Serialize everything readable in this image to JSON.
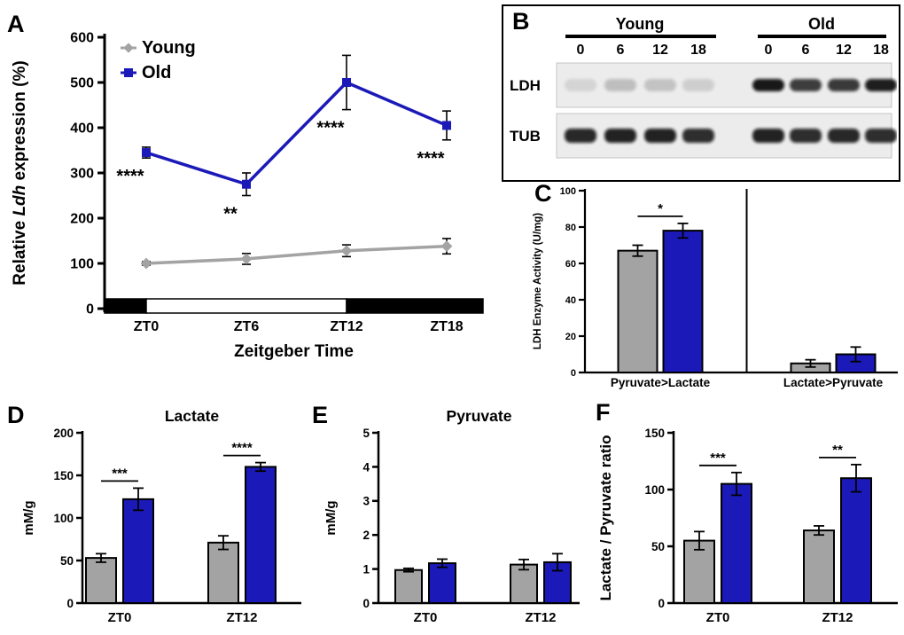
{
  "colors": {
    "young": "#a3a3a3",
    "old": "#1b1ab8",
    "axis": "#000000",
    "blot_background": "#ececec"
  },
  "panel_labels": {
    "A": "A",
    "B": "B",
    "C": "C",
    "D": "D",
    "E": "E",
    "F": "F"
  },
  "chart_data": [
    {
      "panel": "A",
      "type": "line",
      "xlabel": "Zeitgeber Time",
      "ylabel": "Relative Ldh expression (%)",
      "ylabel_italic_word": "Ldh",
      "categories": [
        "ZT0",
        "ZT6",
        "ZT12",
        "ZT18"
      ],
      "ylim": [
        0,
        600
      ],
      "yticks": [
        0,
        100,
        200,
        300,
        400,
        500,
        600
      ],
      "legend": [
        "Young",
        "Old"
      ],
      "series": [
        {
          "name": "Young",
          "color_key": "young",
          "marker": "diamond",
          "values": [
            100,
            110,
            128,
            138
          ],
          "errors": [
            4,
            12,
            13,
            17
          ]
        },
        {
          "name": "Old",
          "color_key": "old",
          "marker": "square",
          "values": [
            345,
            275,
            500,
            405
          ],
          "errors": [
            12,
            25,
            60,
            32
          ]
        }
      ],
      "significance_below_old": [
        "****",
        "**",
        "****",
        "****"
      ],
      "light_dark_bar": {
        "boundaries": [
          "ZT0",
          "ZT12"
        ],
        "fills": [
          "#000000",
          "#ffffff",
          "#000000"
        ]
      }
    },
    {
      "panel": "B",
      "type": "table",
      "groups": [
        "Young",
        "Old"
      ],
      "lanes": [
        "0",
        "6",
        "12",
        "18"
      ],
      "rows": [
        {
          "label": "LDH",
          "band_intensity": [
            0.1,
            0.2,
            0.18,
            0.13,
            0.95,
            0.78,
            0.8,
            0.92
          ]
        },
        {
          "label": "TUB",
          "band_intensity": [
            0.88,
            0.9,
            0.9,
            0.85,
            0.9,
            0.85,
            0.88,
            0.85
          ]
        }
      ]
    },
    {
      "panel": "C",
      "type": "bar",
      "ylabel": "LDH Enzyme Activity (U/mg)",
      "ylim": [
        0,
        100
      ],
      "yticks": [
        0,
        20,
        40,
        60,
        80,
        100
      ],
      "categories": [
        "Pyruvate>Lactate",
        "Lactate>Pyruvate"
      ],
      "series": [
        {
          "name": "Young",
          "color_key": "young",
          "values": [
            67,
            5
          ],
          "errors": [
            3,
            2
          ]
        },
        {
          "name": "Old",
          "color_key": "old",
          "values": [
            78,
            10
          ],
          "errors": [
            4,
            4
          ]
        }
      ],
      "significance": [
        "*",
        null
      ],
      "divider_between_groups": true
    },
    {
      "panel": "D",
      "type": "bar",
      "title": "Lactate",
      "ylabel": "mM/g",
      "ylim": [
        0,
        200
      ],
      "yticks": [
        0,
        50,
        100,
        150,
        200
      ],
      "categories": [
        "ZT0",
        "ZT12"
      ],
      "series": [
        {
          "name": "Young",
          "color_key": "young",
          "values": [
            53,
            71
          ],
          "errors": [
            5,
            8
          ]
        },
        {
          "name": "Old",
          "color_key": "old",
          "values": [
            122,
            160
          ],
          "errors": [
            13,
            5
          ]
        }
      ],
      "significance": [
        "***",
        "****"
      ]
    },
    {
      "panel": "E",
      "type": "bar",
      "title": "Pyruvate",
      "ylabel": "mM/g",
      "ylim": [
        0,
        5
      ],
      "yticks": [
        0,
        1,
        2,
        3,
        4,
        5
      ],
      "categories": [
        "ZT0",
        "ZT12"
      ],
      "series": [
        {
          "name": "Young",
          "color_key": "young",
          "values": [
            0.97,
            1.13
          ],
          "errors": [
            0.05,
            0.15
          ]
        },
        {
          "name": "Old",
          "color_key": "old",
          "values": [
            1.17,
            1.2
          ],
          "errors": [
            0.12,
            0.25
          ]
        }
      ],
      "significance": [
        null,
        null
      ]
    },
    {
      "panel": "F",
      "type": "bar",
      "ylabel": "Lactate / Pyruvate ratio",
      "ylim": [
        0,
        150
      ],
      "yticks": [
        0,
        50,
        100,
        150
      ],
      "categories": [
        "ZT0",
        "ZT12"
      ],
      "series": [
        {
          "name": "Young",
          "color_key": "young",
          "values": [
            55,
            64
          ],
          "errors": [
            8,
            4
          ]
        },
        {
          "name": "Old",
          "color_key": "old",
          "values": [
            105,
            110
          ],
          "errors": [
            10,
            12
          ]
        }
      ],
      "significance": [
        "***",
        "**"
      ]
    }
  ]
}
